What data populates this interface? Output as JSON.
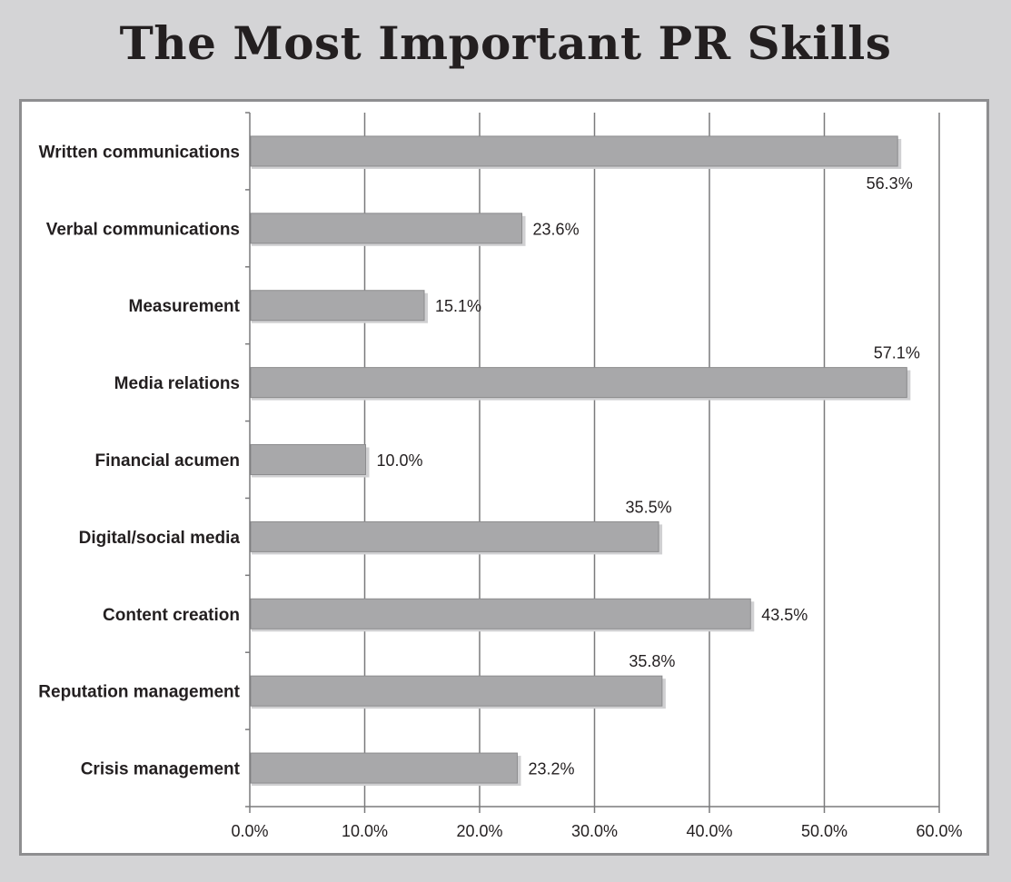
{
  "colors": {
    "background": "#d4d4d6",
    "bar_fill": "#a8a8aa",
    "bar_edge": "#8c8c8e",
    "gridline": "#7a7a7c",
    "frame": "#8e8e90"
  },
  "chart_data": {
    "type": "bar",
    "orientation": "horizontal",
    "title": "The Most Important PR Skills",
    "categories": [
      "Written communications",
      "Verbal communications",
      "Measurement",
      "Media relations",
      "Financial acumen",
      "Digital/social media",
      "Content creation",
      "Reputation management",
      "Crisis management"
    ],
    "values": [
      56.3,
      23.6,
      15.1,
      57.1,
      10.0,
      35.5,
      43.5,
      35.8,
      23.2
    ],
    "value_labels": [
      "56.3%",
      "23.6%",
      "15.1%",
      "57.1%",
      "10.0%",
      "35.5%",
      "43.5%",
      "35.8%",
      "23.2%"
    ],
    "value_label_positions": [
      "below",
      "right",
      "right",
      "above",
      "right",
      "above",
      "right",
      "above",
      "right"
    ],
    "xlim": [
      0,
      60
    ],
    "xticks": [
      0,
      10,
      20,
      30,
      40,
      50,
      60
    ],
    "xtick_labels": [
      "0.0%",
      "10.0%",
      "20.0%",
      "30.0%",
      "40.0%",
      "50.0%",
      "60.0%"
    ],
    "xlabel": "",
    "ylabel": "",
    "grid": "vertical",
    "legend": "none"
  }
}
